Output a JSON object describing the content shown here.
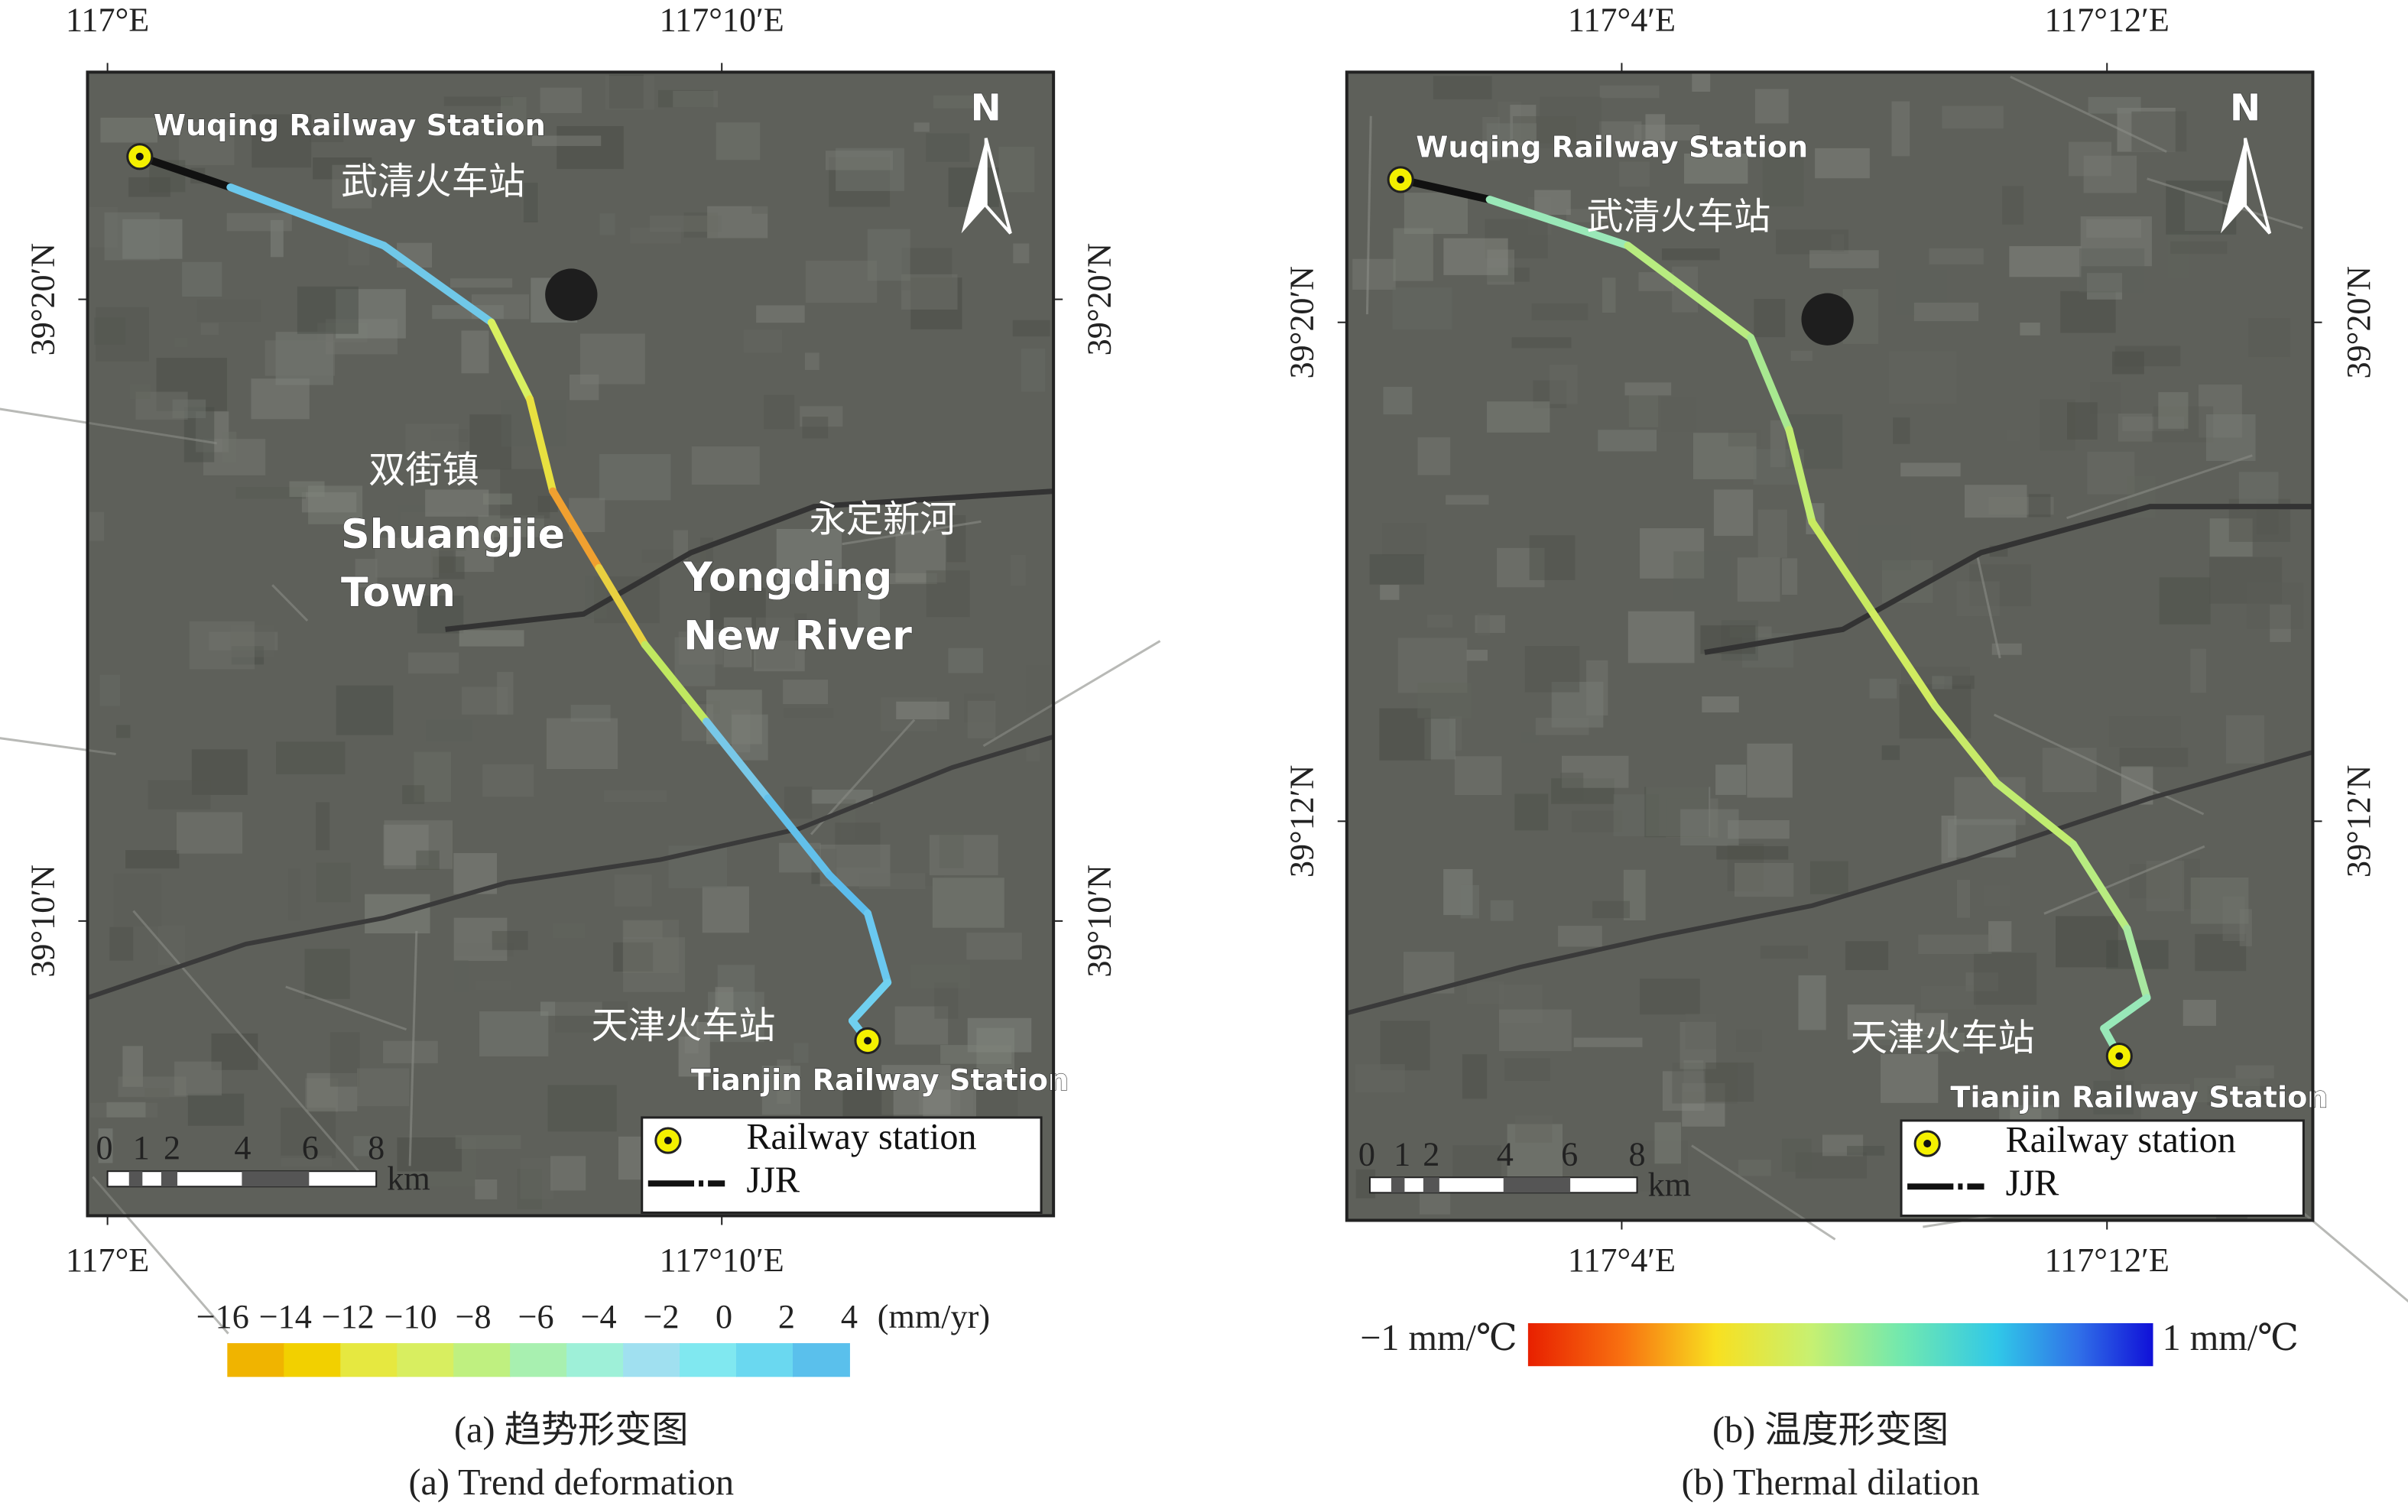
{
  "panels": [
    {
      "top_labels": [
        "117°E",
        "117°10′E"
      ],
      "bottom_labels": [
        "117°E",
        "117°10′E"
      ],
      "left_labels": [
        "39°20′N",
        "39°10′N"
      ],
      "right_labels": [
        "39°20′N",
        "39°10′N"
      ],
      "north": "N",
      "places": [
        "Wuqing Railway Station",
        "武清火车站",
        "双街镇",
        "Shuangjie",
        "Town",
        "永定新河",
        "Yongding",
        "New River",
        "天津火车站",
        "Tianjin Railway Station"
      ],
      "scale_labels": [
        "0",
        "1",
        "2",
        "4",
        "6",
        "8"
      ],
      "scale_unit": "km",
      "legend": [
        "Railway station",
        "JJR"
      ],
      "colorbar": {
        "ticks": [
          "−16",
          "−14",
          "−12",
          "−10",
          "−8",
          "−6",
          "−4",
          "−2",
          "0",
          "2",
          "4"
        ],
        "unit": "(mm/yr)"
      },
      "caption_zh": "(a) 趋势形变图",
      "caption_en": "(a) Trend deformation"
    },
    {
      "top_labels": [
        "117°4′E",
        "117°12′E"
      ],
      "bottom_labels": [
        "117°4′E",
        "117°12′E"
      ],
      "left_labels": [
        "39°20′N",
        "39°12′N"
      ],
      "right_labels": [
        "39°20′N",
        "39°12′N"
      ],
      "north": "N",
      "places": [
        "Wuqing Railway Station",
        "武清火车站",
        "天津火车站",
        "Tianjin Railway Station"
      ],
      "scale_labels": [
        "0",
        "1",
        "2",
        "4",
        "6",
        "8"
      ],
      "scale_unit": "km",
      "legend": [
        "Railway station",
        "JJR"
      ],
      "colorbar": {
        "min_label": "−1 mm/℃",
        "max_label": "1 mm/℃"
      },
      "caption_zh": "(b) 温度形变图",
      "caption_en": "(b) Thermal dilation"
    }
  ]
}
